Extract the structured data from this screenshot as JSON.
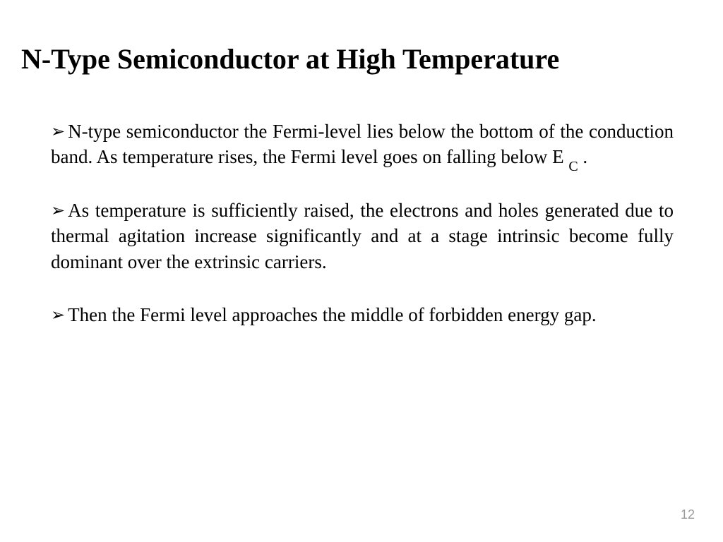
{
  "title": "N-Type Semiconductor at High Temperature",
  "bullet_color": "#000000",
  "text_color": "#000000",
  "background_color": "#ffffff",
  "title_fontsize": 40,
  "body_fontsize": 27,
  "bullets": [
    {
      "pre": "N-type semiconductor the Fermi-level lies below the bottom of the conduction band. As temperature rises, the Fermi level goes on falling below E ",
      "sub": "C",
      "post": " ."
    },
    {
      "pre": "As temperature is sufficiently raised, the electrons and holes generated due to thermal agitation increase significantly and at a stage intrinsic become fully dominant over the extrinsic carriers.",
      "sub": "",
      "post": ""
    },
    {
      "pre": "Then the Fermi level approaches the middle of forbidden energy gap.",
      "sub": "",
      "post": ""
    }
  ],
  "page_number": "12"
}
